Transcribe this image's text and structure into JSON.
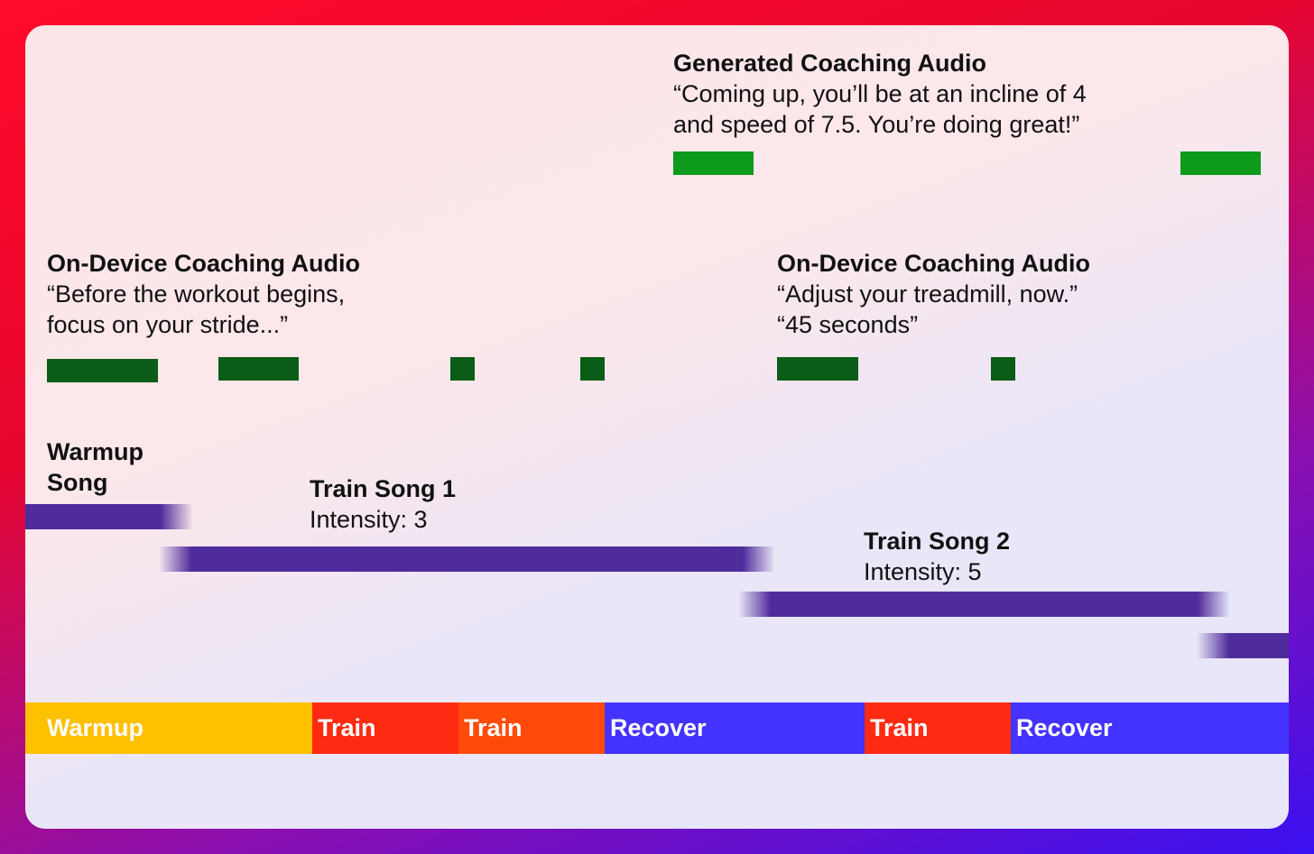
{
  "coaching": {
    "generated": {
      "title": "Generated Coaching Audio",
      "quote_lines": [
        "“Coming up, you’ll be at an incline of 4",
        "and speed of 7.5. You’re doing great!”"
      ]
    },
    "device_1": {
      "title": "On-Device Coaching Audio",
      "quote_lines": [
        "“Before the workout begins,",
        "focus on your stride...”"
      ]
    },
    "device_2": {
      "title": "On-Device Coaching Audio",
      "quote_lines": [
        "“Adjust your treadmill, now.”",
        "“45 seconds”"
      ]
    }
  },
  "songs": {
    "warmup": {
      "title_lines": [
        "Warmup",
        "Song"
      ]
    },
    "train1": {
      "title": "Train Song 1",
      "intensity": "Intensity: 3"
    },
    "train2": {
      "title": "Train Song 2",
      "intensity": "Intensity: 5"
    }
  },
  "segments": [
    {
      "label": "Warmup",
      "color": "#ffc000"
    },
    {
      "label": "Train",
      "color": "#ff2a12"
    },
    {
      "label": "Train",
      "color": "#ff4a0a"
    },
    {
      "label": "Recover",
      "color": "#4433ff"
    },
    {
      "label": "Train",
      "color": "#ff2a12"
    },
    {
      "label": "Recover",
      "color": "#4433ff"
    }
  ],
  "colors": {
    "generated_audio": "#0e9a1b",
    "device_audio": "#0b5c16",
    "song_bar": "#4f2c9c"
  }
}
